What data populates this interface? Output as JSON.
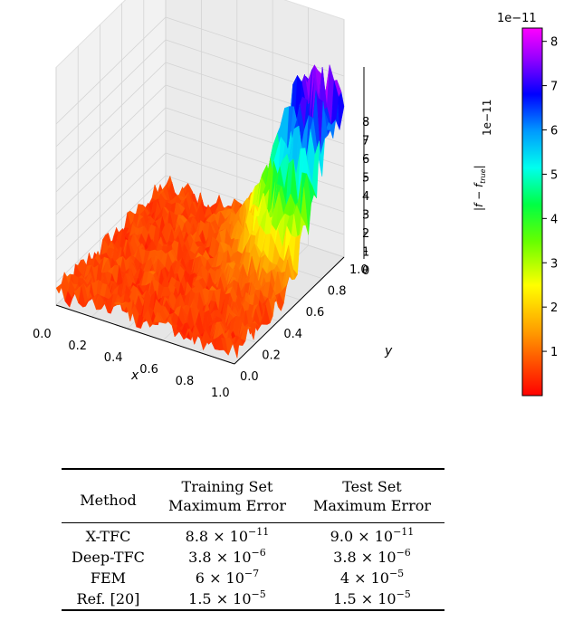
{
  "figure": {
    "chart_data": {
      "type": "surface3d",
      "xlabel": "x",
      "ylabel": "y",
      "zlabel": "|f − f_true|",
      "zlabel_main": "|f − f",
      "zlabel_sub": "true",
      "zlabel_end": "|",
      "z_multiplier": "1e−11",
      "x_ticks": [
        "0.0",
        "0.2",
        "0.4",
        "0.6",
        "0.8",
        "1.0"
      ],
      "y_ticks": [
        "0.0",
        "0.2",
        "0.4",
        "0.6",
        "0.8",
        "1.0"
      ],
      "z_ticks": [
        "0",
        "1",
        "2",
        "3",
        "4",
        "5",
        "6",
        "7",
        "8"
      ],
      "xlim": [
        0,
        1
      ],
      "ylim": [
        0,
        1
      ],
      "zlim": [
        0,
        8.5
      ],
      "colormap": "hsv",
      "colorbar": {
        "multiplier": "1e−11",
        "ticks": [
          "1",
          "2",
          "3",
          "4",
          "5",
          "6",
          "7",
          "8"
        ],
        "range": [
          0,
          8.3
        ]
      }
    }
  },
  "table": {
    "headers": {
      "method": "Method",
      "train_line1": "Training Set",
      "train_line2": "Maximum Error",
      "test_line1": "Test Set",
      "test_line2": "Maximum Error"
    },
    "rows": [
      {
        "method": "X-TFC",
        "train_base": "8.8 × 10",
        "train_exp": "−11",
        "test_base": "9.0 × 10",
        "test_exp": "−11"
      },
      {
        "method": "Deep-TFC",
        "train_base": "3.8 × 10",
        "train_exp": "−6",
        "test_base": "3.8 × 10",
        "test_exp": "−6"
      },
      {
        "method": "FEM",
        "train_base": "6 × 10",
        "train_exp": "−7",
        "test_base": "4 × 10",
        "test_exp": "−5"
      },
      {
        "method": "Ref. [20]",
        "train_base": "1.5 × 10",
        "train_exp": "−5",
        "test_base": "1.5 × 10",
        "test_exp": "−5"
      }
    ]
  }
}
